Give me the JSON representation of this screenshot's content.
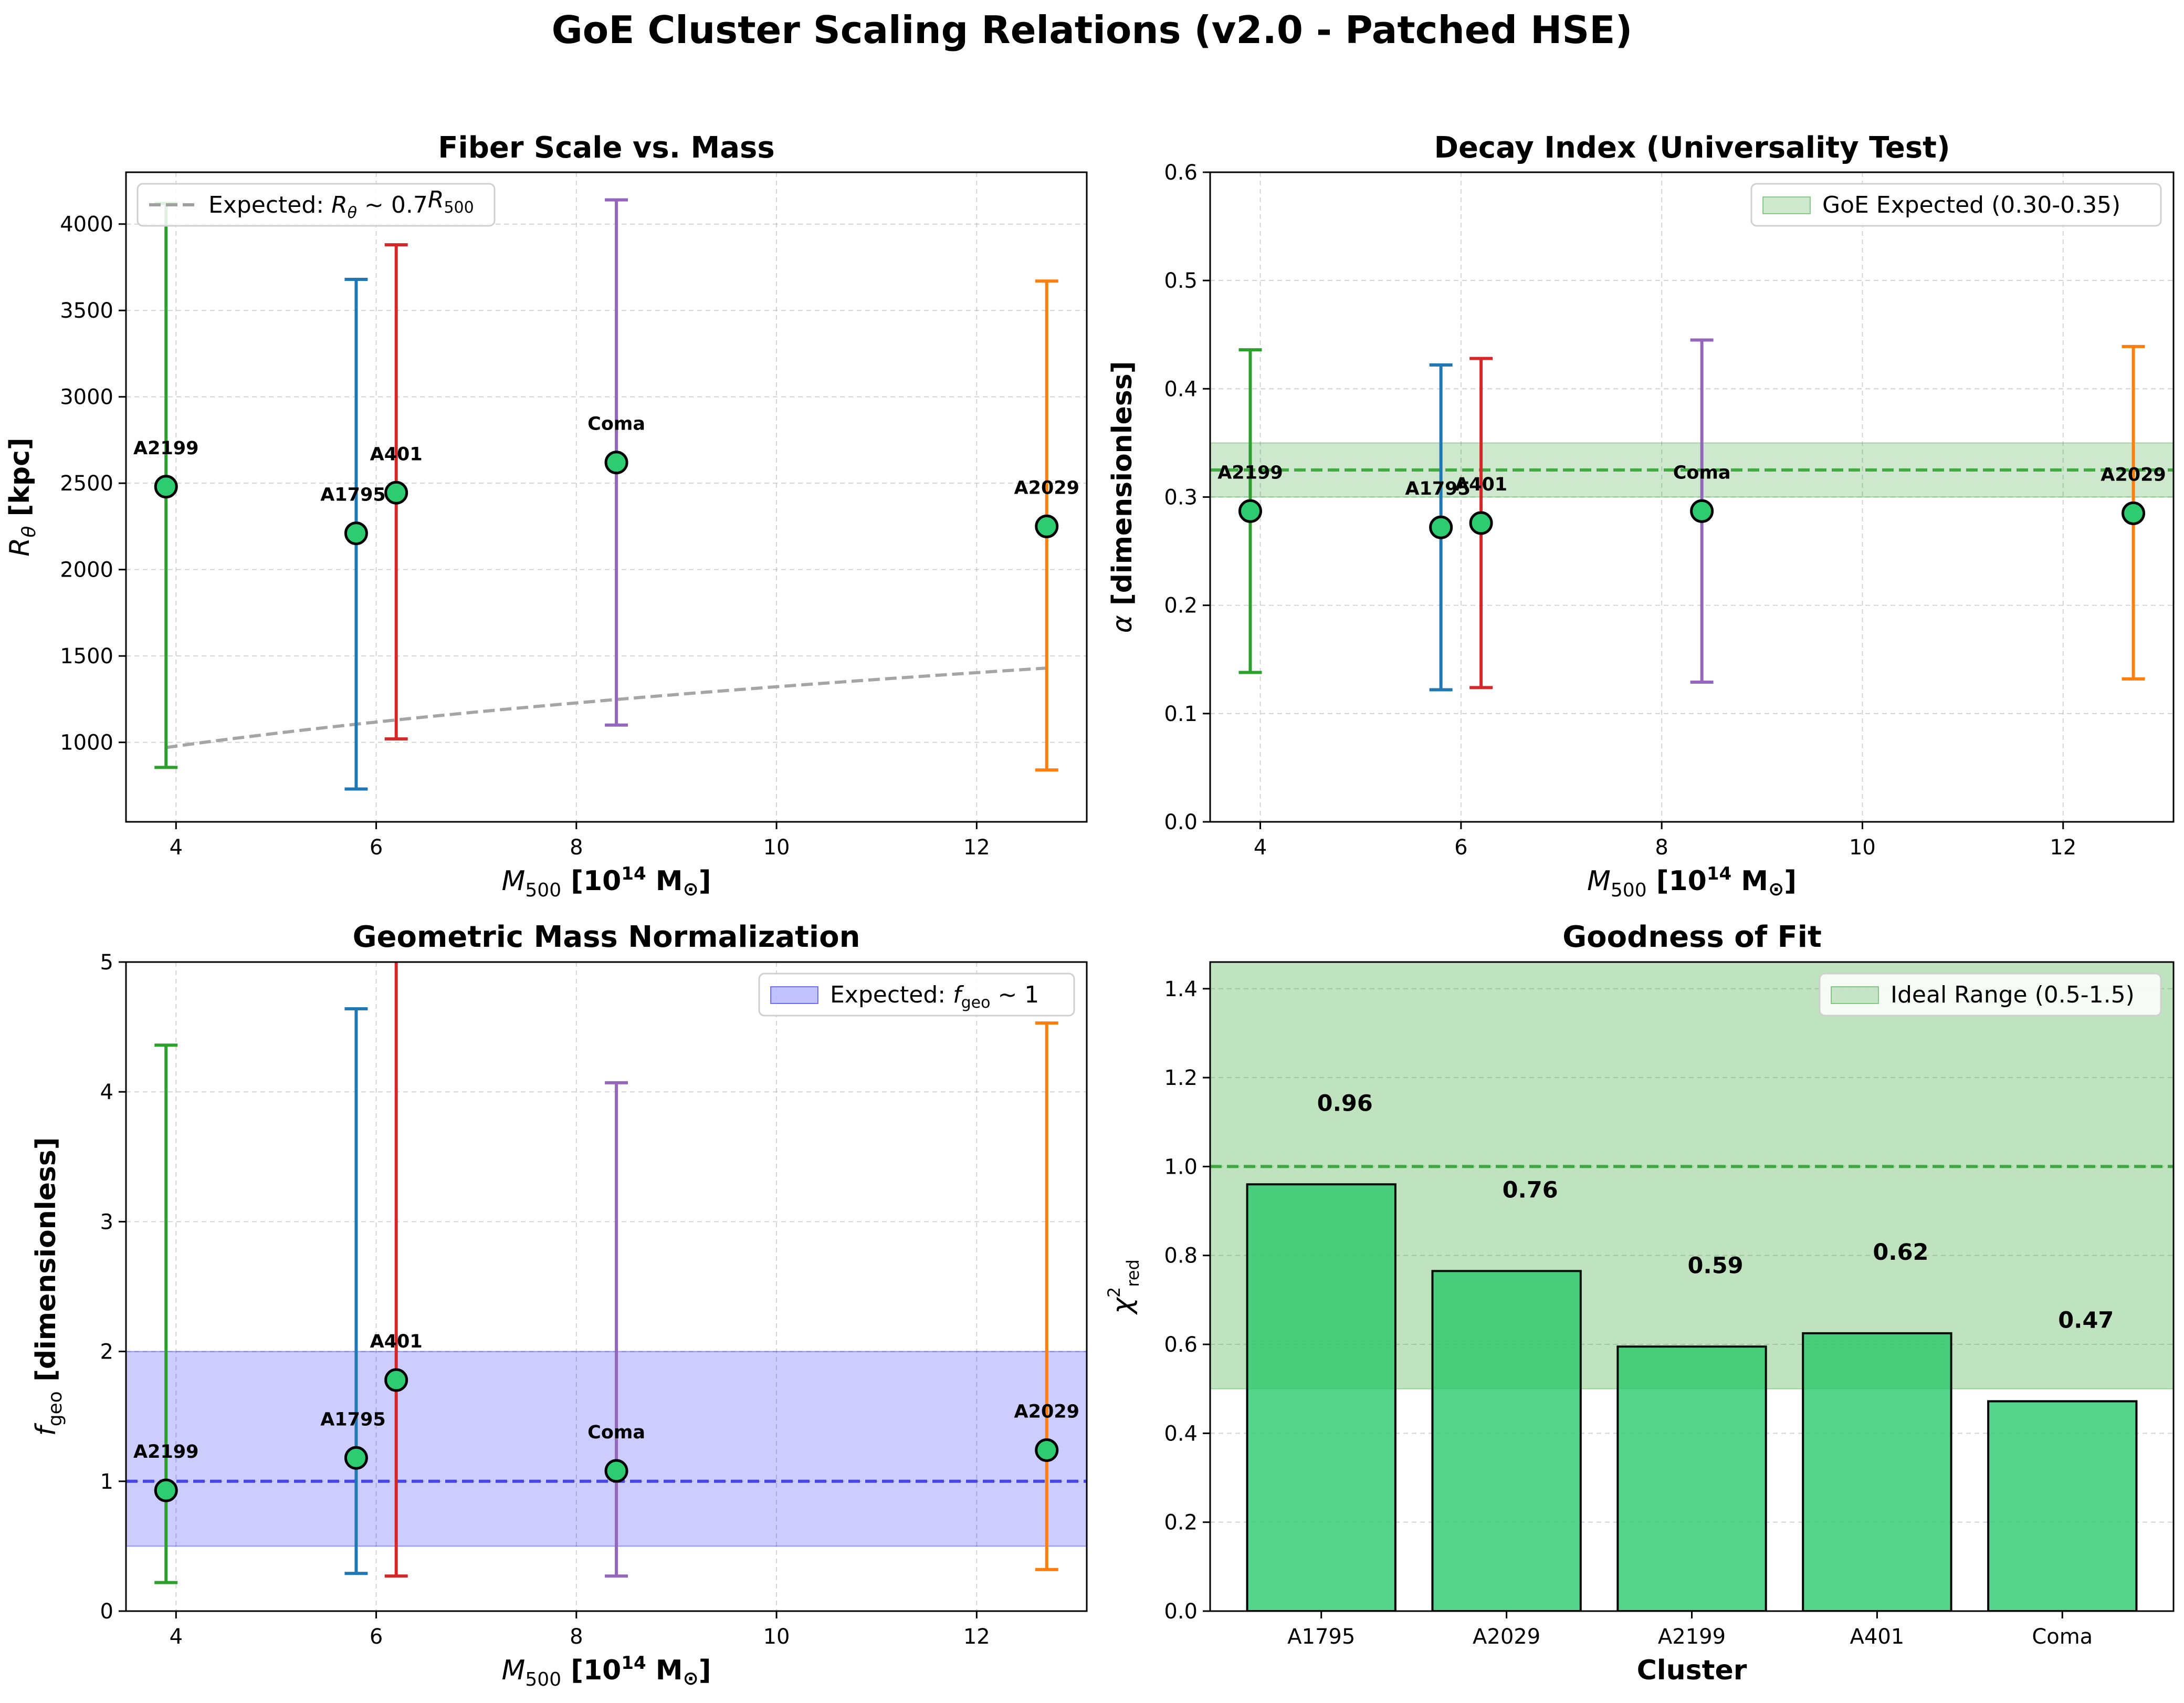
{
  "figure_title": "GoE Cluster Scaling Relations (v2.0 - Patched HSE)",
  "colors": {
    "marker_fill": "#2ecc71",
    "A2199": "#2ca02c",
    "A1795": "#1f77b4",
    "A401": "#d62728",
    "Coma": "#9467bd",
    "A2029": "#ff7f0e",
    "expected_line": "#a0a0a0",
    "goe_band": "#2ca02c",
    "fgeo_band": "#0000ff",
    "fgeo_line": "#3333dd",
    "bar_fill": "#2ecc71"
  },
  "chart_data": [
    {
      "id": "fiber",
      "type": "scatter",
      "title": "Fiber Scale vs. Mass",
      "xlabel": "M500 [10^14 M⊙]",
      "ylabel": "Rθ [kpc]",
      "xlim": [
        3.5,
        13.1
      ],
      "ylim": [
        540,
        4300
      ],
      "xticks": [
        4,
        6,
        8,
        10,
        12
      ],
      "yticks": [
        1000,
        1500,
        2000,
        2500,
        3000,
        3500,
        4000
      ],
      "grid": true,
      "legend": {
        "placement": "upper-left",
        "entries": [
          "Expected: Rθ ~ 0.7R500"
        ]
      },
      "expected_curve": {
        "label": "Expected: Rθ ~ 0.7R500",
        "x_range": [
          3.9,
          12.7
        ],
        "y_at_ends": [
          970,
          1430
        ]
      },
      "points": [
        {
          "label": "A2199",
          "x": 3.9,
          "y": 2480,
          "err_low": 855,
          "err_high": 4120
        },
        {
          "label": "A1795",
          "x": 5.8,
          "y": 2210,
          "err_low": 730,
          "err_high": 3680
        },
        {
          "label": "A401",
          "x": 6.2,
          "y": 2445,
          "err_low": 1020,
          "err_high": 3880
        },
        {
          "label": "Coma",
          "x": 8.4,
          "y": 2620,
          "err_low": 1100,
          "err_high": 4140
        },
        {
          "label": "A2029",
          "x": 12.7,
          "y": 2250,
          "err_low": 840,
          "err_high": 3670
        }
      ]
    },
    {
      "id": "decay",
      "type": "scatter",
      "title": "Decay Index (Universality Test)",
      "xlabel": "M500 [10^14 M⊙]",
      "ylabel": "α [dimensionless]",
      "xlim": [
        3.5,
        13.1
      ],
      "ylim": [
        0,
        0.6
      ],
      "xticks": [
        4,
        6,
        8,
        10,
        12
      ],
      "yticks": [
        0.0,
        0.1,
        0.2,
        0.3,
        0.4,
        0.5,
        0.6
      ],
      "grid": true,
      "legend": {
        "placement": "upper-right",
        "entries": [
          "GoE Expected (0.30-0.35)"
        ]
      },
      "band": {
        "label": "GoE Expected (0.30-0.35)",
        "y_range": [
          0.3,
          0.35
        ]
      },
      "reference_line": 0.325,
      "points": [
        {
          "label": "A2199",
          "x": 3.9,
          "y": 0.287,
          "err_low": 0.138,
          "err_high": 0.436
        },
        {
          "label": "A1795",
          "x": 5.8,
          "y": 0.272,
          "err_low": 0.122,
          "err_high": 0.422
        },
        {
          "label": "A401",
          "x": 6.2,
          "y": 0.276,
          "err_low": 0.124,
          "err_high": 0.428
        },
        {
          "label": "Coma",
          "x": 8.4,
          "y": 0.287,
          "err_low": 0.129,
          "err_high": 0.445
        },
        {
          "label": "A2029",
          "x": 12.7,
          "y": 0.285,
          "err_low": 0.132,
          "err_high": 0.439
        }
      ]
    },
    {
      "id": "fgeo",
      "type": "scatter",
      "title": "Geometric Mass Normalization",
      "xlabel": "M500 [10^14 M⊙]",
      "ylabel": "fgeo [dimensionless]",
      "xlim": [
        3.5,
        13.1
      ],
      "ylim": [
        0,
        5
      ],
      "xticks": [
        4,
        6,
        8,
        10,
        12
      ],
      "yticks": [
        0,
        1,
        2,
        3,
        4,
        5
      ],
      "grid": true,
      "legend": {
        "placement": "upper-right",
        "entries": [
          "Expected: fgeo ~ 1"
        ]
      },
      "band": {
        "label": "Expected: fgeo ~ 1",
        "y_range": [
          0.5,
          2.0
        ]
      },
      "reference_line": 1.0,
      "points": [
        {
          "label": "A2199",
          "x": 3.9,
          "y": 0.93,
          "err_low": 0.22,
          "err_high": 4.36
        },
        {
          "label": "A1795",
          "x": 5.8,
          "y": 1.18,
          "err_low": 0.29,
          "err_high": 4.64
        },
        {
          "label": "A401",
          "x": 6.2,
          "y": 1.78,
          "err_low": 0.27,
          "err_high": 5.2
        },
        {
          "label": "Coma",
          "x": 8.4,
          "y": 1.08,
          "err_low": 0.27,
          "err_high": 4.07
        },
        {
          "label": "A2029",
          "x": 12.7,
          "y": 1.24,
          "err_low": 0.32,
          "err_high": 4.53
        }
      ]
    },
    {
      "id": "gof",
      "type": "bar",
      "title": "Goodness of Fit",
      "xlabel": "Cluster",
      "ylabel": "χ²red",
      "ylim": [
        0,
        1.46
      ],
      "yticks": [
        0.0,
        0.2,
        0.4,
        0.6,
        0.8,
        1.0,
        1.2,
        1.4
      ],
      "grid": true,
      "legend": {
        "placement": "upper-right",
        "entries": [
          "Ideal Range (0.5-1.5)"
        ]
      },
      "band": {
        "label": "Ideal Range (0.5-1.5)",
        "y_range": [
          0.5,
          1.5
        ]
      },
      "reference_line": 1.0,
      "categories": [
        "A1795",
        "A2029",
        "A2199",
        "A401",
        "Coma"
      ],
      "values": [
        0.96,
        0.765,
        0.595,
        0.625,
        0.472
      ],
      "value_labels": [
        "0.96",
        "0.76",
        "0.59",
        "0.62",
        "0.47"
      ]
    }
  ]
}
